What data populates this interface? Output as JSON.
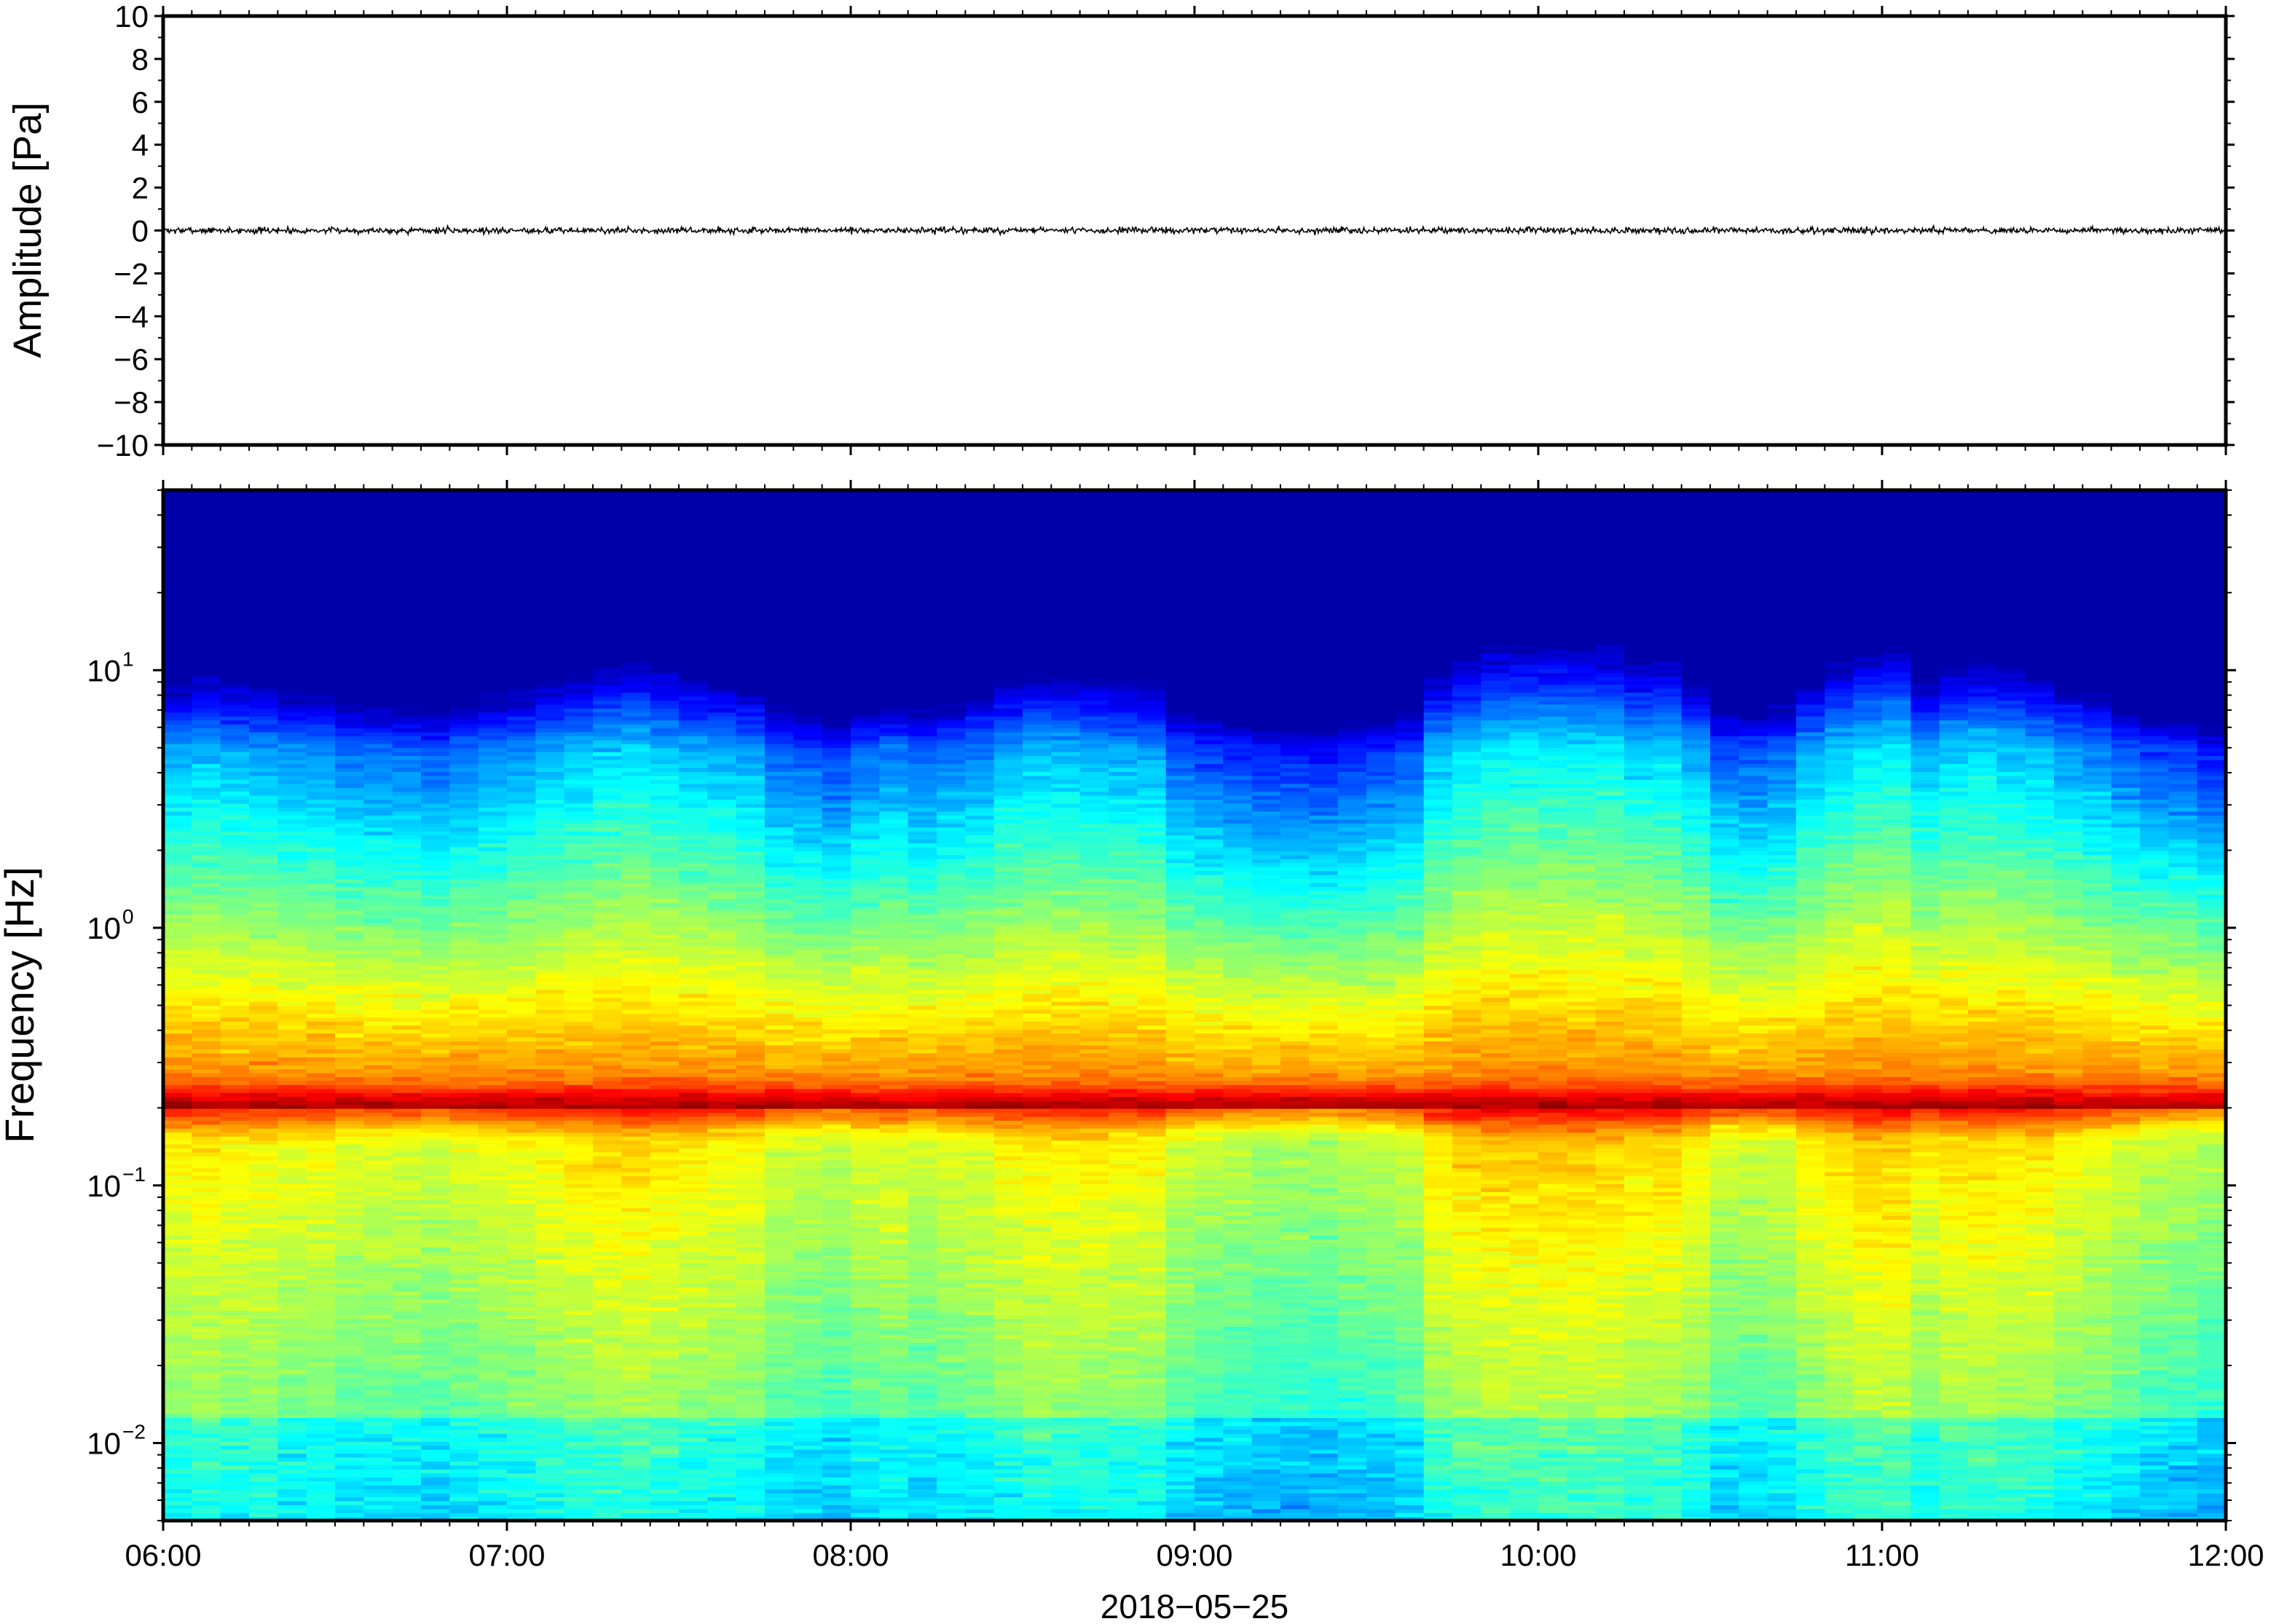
{
  "chart_data": [
    {
      "type": "line",
      "ylabel": "Amplitude [Pa]",
      "ylim": [
        -10,
        10
      ],
      "yticks": [
        10,
        8,
        6,
        4,
        2,
        0,
        -2,
        -4,
        -6,
        -8,
        -10
      ],
      "ytick_labels": [
        "10",
        "8",
        "6",
        "4",
        "2",
        "0",
        "−2",
        "−4",
        "−6",
        "−8",
        "−10"
      ],
      "x_range": [
        "06:00",
        "12:00"
      ],
      "series_description_values": {
        "baseline": 0,
        "approx_peak_amplitude": 0.25
      },
      "line_color": "#000000",
      "grid": false
    },
    {
      "type": "heatmap",
      "ylabel": "Frequency [Hz]",
      "yscale": "log",
      "ylim": [
        0.005,
        50
      ],
      "yticks": [
        {
          "value": 10,
          "base": "10",
          "exp": "1"
        },
        {
          "value": 1,
          "base": "10",
          "exp": "0"
        },
        {
          "value": 0.1,
          "base": "10",
          "exp": "−1"
        },
        {
          "value": 0.01,
          "base": "10",
          "exp": "−2"
        }
      ],
      "xlabel": "2018−05−25",
      "xticks": [
        "06:00",
        "07:00",
        "08:00",
        "09:00",
        "10:00",
        "11:00",
        "12:00"
      ],
      "x_range_hours": [
        6,
        12
      ],
      "colormap": "jet",
      "dominant_band_hz": 0.2,
      "grid": false
    }
  ]
}
